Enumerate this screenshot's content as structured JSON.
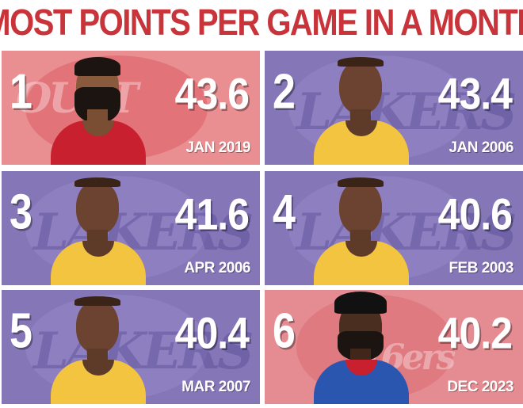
{
  "title": "MOST POINTS PER GAME IN A MONTH",
  "colors": {
    "title_red": "#c8343a",
    "rockets_bg": "#e98f92",
    "lakers_bg": "#8576b8",
    "sixers_bg": "#e58c93",
    "lakers_gold": "#f3c43f",
    "rockets_red": "#c8202e",
    "sixers_blue": "#2a56b0"
  },
  "entries": [
    {
      "rank": "1",
      "ppg": "43.6",
      "month": "JAN 2019",
      "team_logo_text": "OUST"
    },
    {
      "rank": "2",
      "ppg": "43.4",
      "month": "JAN 2006",
      "team_logo_text": "LAKERS"
    },
    {
      "rank": "3",
      "ppg": "41.6",
      "month": "APR 2006",
      "team_logo_text": "LAKERS"
    },
    {
      "rank": "4",
      "ppg": "40.6",
      "month": "FEB 2003",
      "team_logo_text": "LAKERS"
    },
    {
      "rank": "5",
      "ppg": "40.4",
      "month": "MAR 2007",
      "team_logo_text": "LAKERS"
    },
    {
      "rank": "6",
      "ppg": "40.2",
      "month": "DEC 2023",
      "team_logo_text": "76ers"
    }
  ]
}
